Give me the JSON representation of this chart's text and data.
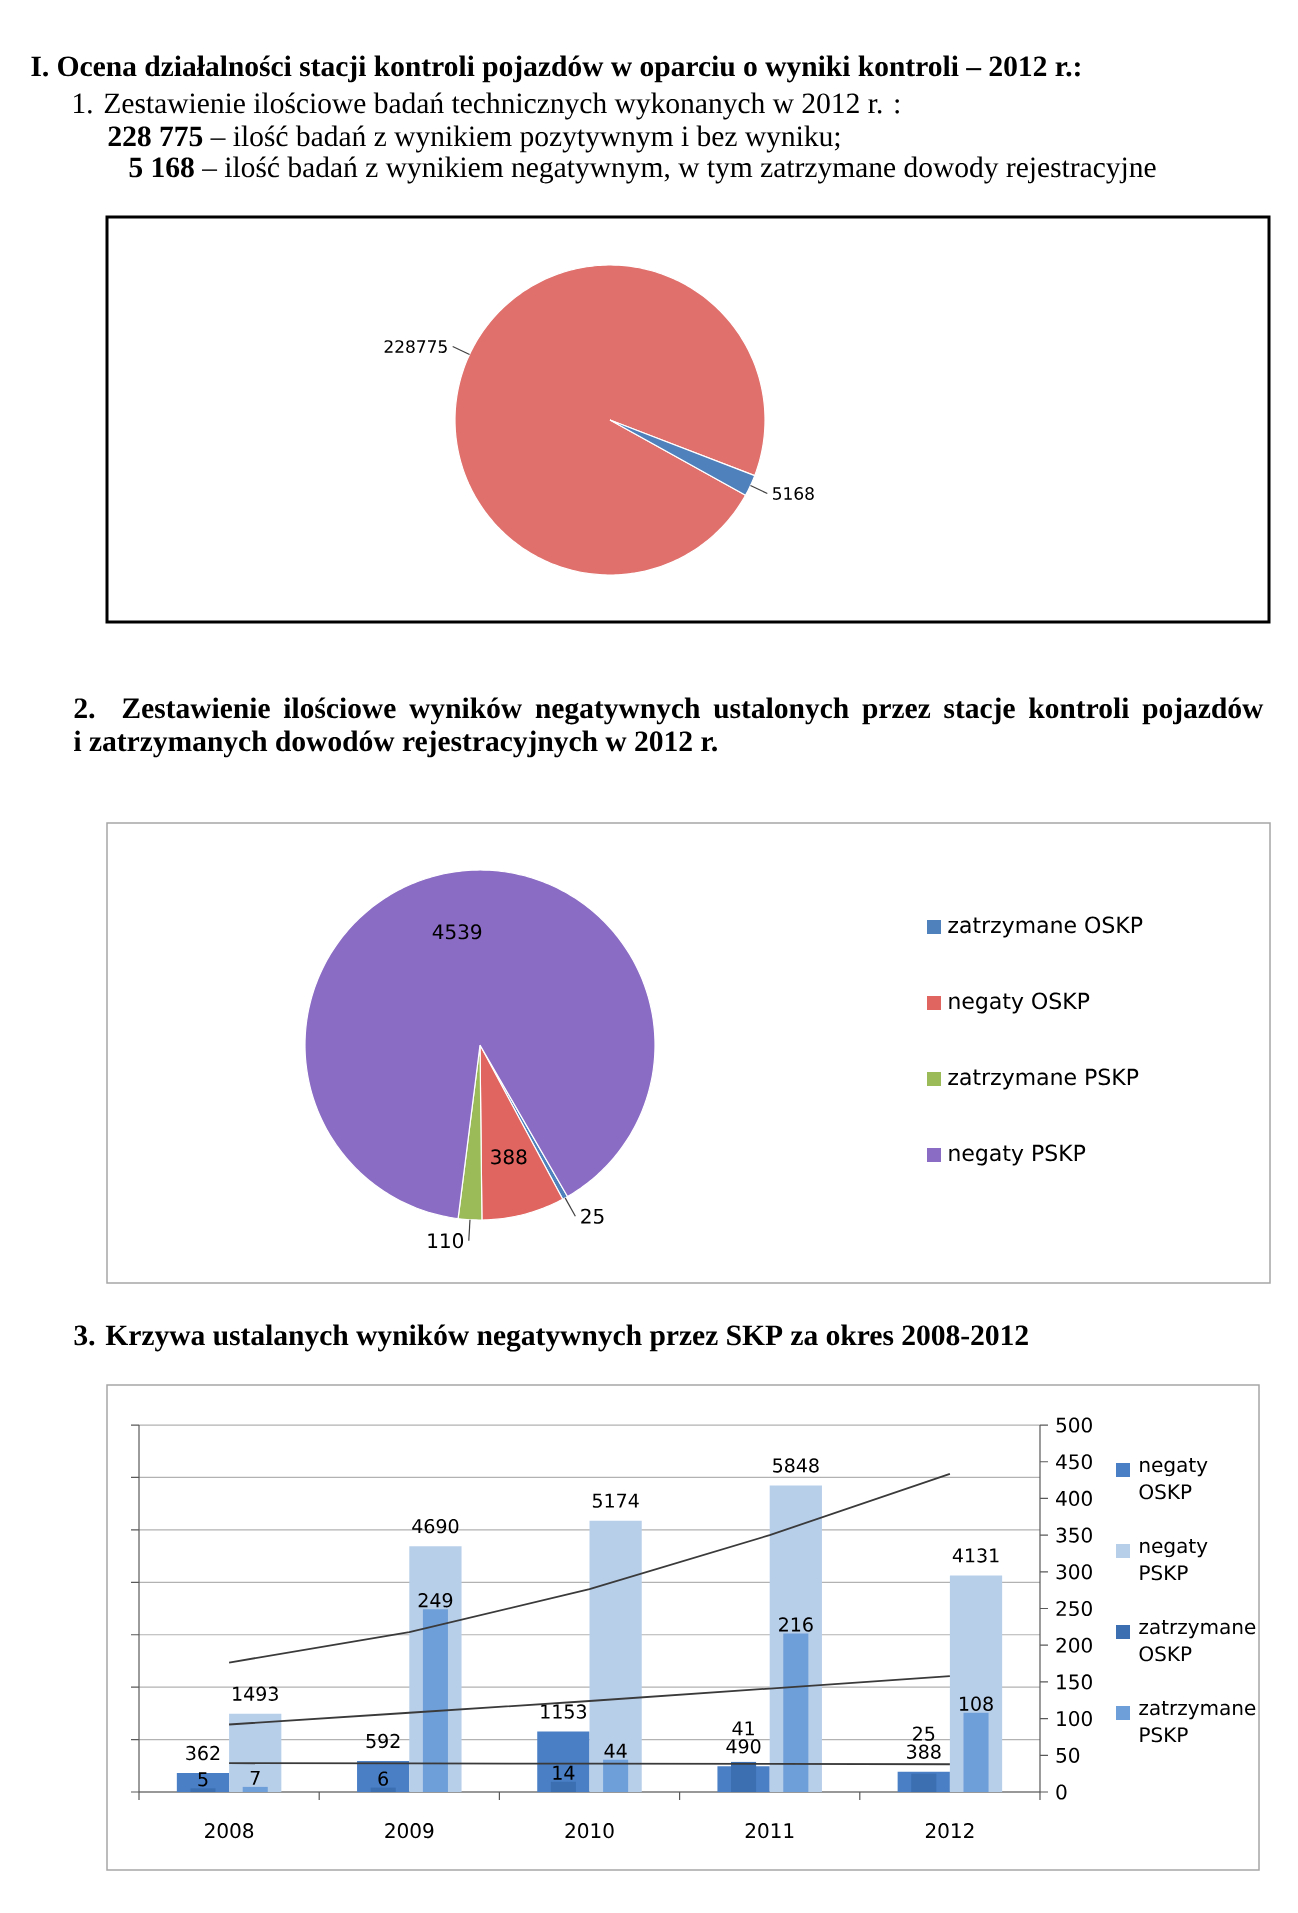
{
  "chart_data": [
    {
      "type": "pie",
      "title": "I. Ocena działalności stacji kontroli pojazdów w oparciu o wyniki kontroli – 2012 r.:",
      "subtitle": "1. Zestawienie ilościowe badań technicznych wykonanych w 2012 r. :",
      "annotations": [
        "**228 775** – ilość badań z wynikiem pozytywnym i bez wyniku;",
        "**5 168** – ilość badań z wynikiem negatywnym, w tym zatrzymane dowody rejestracyjne"
      ],
      "categories": [
        null,
        null
      ],
      "values": [
        228775,
        5168
      ],
      "colors": [
        "#e0706c",
        "#4f81bd"
      ],
      "data_labels": true
    },
    {
      "type": "pie",
      "title": "2. Zestawienie ilościowe wyników negatywnych ustalonych przez stacje kontroli pojazdów i zatrzymanych dowodów rejestracyjnych w 2012 r.",
      "categories": [
        "zatrzymane OSKP",
        "negaty OSKP",
        "zatrzymane PSKP",
        "negaty PSKP"
      ],
      "values": [
        25,
        388,
        110,
        4539
      ],
      "colors": [
        "#4f81bd",
        "#e0645f",
        "#9bbb59",
        "#8b6cc4"
      ],
      "data_labels": true,
      "legend": "right"
    },
    {
      "type": "bar",
      "title": "3. Krzywa ustalanych wyników negatywnych przez SKP za okres 2008-2012",
      "categories": [
        "2008",
        "2009",
        "2010",
        "2011",
        "2012"
      ],
      "series": [
        {
          "name": "negaty OSKP",
          "color": "#4a7fc6",
          "values": [
            362,
            592,
            1153,
            490,
            388
          ],
          "value_labels": [
            "362",
            "592",
            "1153",
            "490",
            "388"
          ]
        },
        {
          "name": "negaty PSKP",
          "color": "#b8cfea",
          "values": [
            1493,
            4690,
            5174,
            5848,
            4131
          ],
          "value_labels": [
            "1493",
            "4690",
            "5174",
            "5848",
            "4131"
          ]
        },
        {
          "name": "zatrzymane OSKP",
          "color": "#3b6fb2",
          "values": [
            5,
            6,
            14,
            41,
            25
          ],
          "value_labels": [
            "5",
            "6",
            "14",
            "41",
            "25"
          ],
          "axis": "y2"
        },
        {
          "name": "zatrzymane PSKP",
          "color": "#6f9fd9",
          "values": [
            7,
            249,
            44,
            216,
            108
          ],
          "value_labels": [
            "7",
            "249",
            "44",
            "216",
            "108"
          ],
          "axis": "y2"
        },
        {
          "type": "line",
          "color": "#3a3a3a",
          "values": [
            2470,
            3050,
            3870,
            4900,
            6070
          ]
        },
        {
          "type": "line",
          "color": "#3a3a3a",
          "values": [
            550,
            545,
            540,
            535,
            530
          ]
        },
        {
          "type": "line",
          "color": "#3a3a3a",
          "values": [
            92,
            108,
            124,
            141,
            158
          ],
          "axis": "y2"
        }
      ],
      "ylim": [
        0,
        7000
      ],
      "yticks": [
        {
          "value": 0,
          "label": null
        },
        {
          "value": 1000,
          "label": null
        },
        {
          "value": 2000,
          "label": null
        },
        {
          "value": 3000,
          "label": null
        },
        {
          "value": 4000,
          "label": null
        },
        {
          "value": 5000,
          "label": null
        },
        {
          "value": 6000,
          "label": null
        },
        {
          "value": 7000,
          "label": null
        }
      ],
      "y2lim": [
        0,
        500
      ],
      "y2ticks": [
        0,
        50,
        100,
        150,
        200,
        250,
        300,
        350,
        400,
        450,
        500
      ],
      "grid": "y",
      "legend": "right"
    }
  ]
}
